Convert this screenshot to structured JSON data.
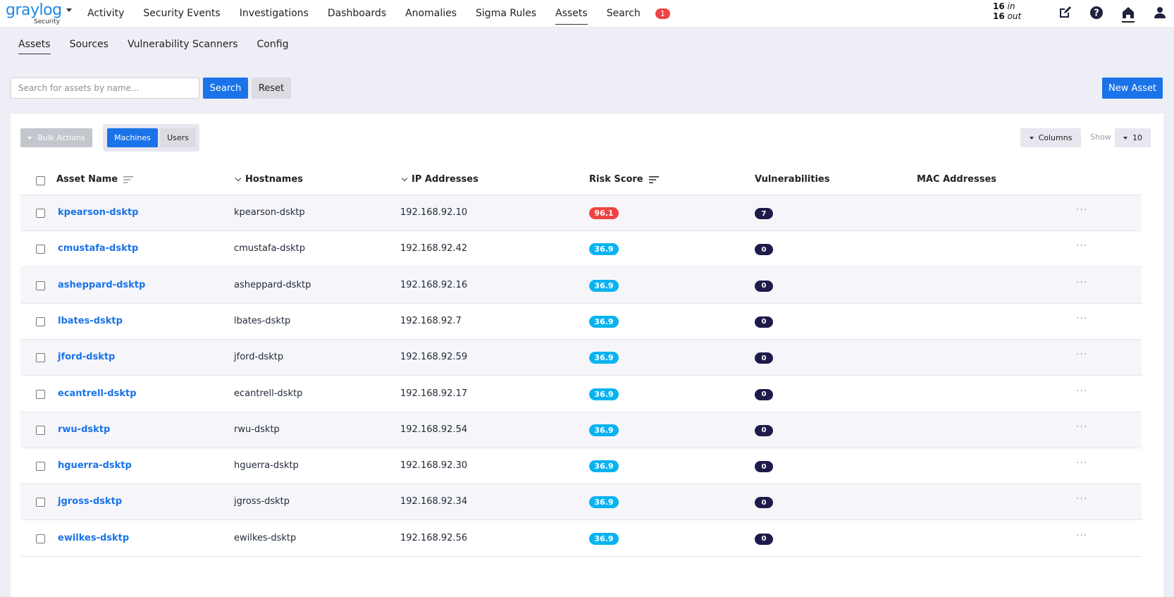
{
  "brand": {
    "logo_text": "graylog",
    "logo_sub": "Security"
  },
  "nav": {
    "items": [
      "Activity",
      "Security Events",
      "Investigations",
      "Dashboards",
      "Anomalies",
      "Sigma Rules",
      "Assets",
      "Search"
    ],
    "active": "Assets",
    "notification_count": "1"
  },
  "throughput": {
    "in_value": "16",
    "in_label": "in",
    "out_value": "16",
    "out_label": "out"
  },
  "icons": [
    "edit-icon",
    "help-icon",
    "home-icon",
    "user-icon"
  ],
  "subnav": {
    "items": [
      "Assets",
      "Sources",
      "Vulnerability Scanners",
      "Config"
    ],
    "active": "Assets"
  },
  "search": {
    "placeholder": "Search for assets by name...",
    "value": "",
    "search_label": "Search",
    "reset_label": "Reset",
    "new_label": "New Asset"
  },
  "toolbar": {
    "bulk_label": "Bulk Actions",
    "tab_machines": "Machines",
    "tab_users": "Users",
    "columns_label": "Columns",
    "show_label": "Show",
    "show_value": "10"
  },
  "table": {
    "headers": {
      "name": "Asset Name",
      "hostnames": "Hostnames",
      "ips": "IP Addresses",
      "risk": "Risk Score",
      "vulns": "Vulnerabilities",
      "mac": "MAC Addresses"
    },
    "rows": [
      {
        "name": "kpearson-dsktp",
        "hostname": "kpearson-dsktp",
        "ip": "192.168.92.10",
        "risk": "96.1",
        "risk_level": "high",
        "vulns": "7",
        "mac": ""
      },
      {
        "name": "cmustafa-dsktp",
        "hostname": "cmustafa-dsktp",
        "ip": "192.168.92.42",
        "risk": "36.9",
        "risk_level": "low",
        "vulns": "0",
        "mac": ""
      },
      {
        "name": "asheppard-dsktp",
        "hostname": "asheppard-dsktp",
        "ip": "192.168.92.16",
        "risk": "36.9",
        "risk_level": "low",
        "vulns": "0",
        "mac": ""
      },
      {
        "name": "lbates-dsktp",
        "hostname": "lbates-dsktp",
        "ip": "192.168.92.7",
        "risk": "36.9",
        "risk_level": "low",
        "vulns": "0",
        "mac": ""
      },
      {
        "name": "jford-dsktp",
        "hostname": "jford-dsktp",
        "ip": "192.168.92.59",
        "risk": "36.9",
        "risk_level": "low",
        "vulns": "0",
        "mac": ""
      },
      {
        "name": "ecantrell-dsktp",
        "hostname": "ecantrell-dsktp",
        "ip": "192.168.92.17",
        "risk": "36.9",
        "risk_level": "low",
        "vulns": "0",
        "mac": ""
      },
      {
        "name": "rwu-dsktp",
        "hostname": "rwu-dsktp",
        "ip": "192.168.92.54",
        "risk": "36.9",
        "risk_level": "low",
        "vulns": "0",
        "mac": ""
      },
      {
        "name": "hguerra-dsktp",
        "hostname": "hguerra-dsktp",
        "ip": "192.168.92.30",
        "risk": "36.9",
        "risk_level": "low",
        "vulns": "0",
        "mac": ""
      },
      {
        "name": "jgross-dsktp",
        "hostname": "jgross-dsktp",
        "ip": "192.168.92.34",
        "risk": "36.9",
        "risk_level": "low",
        "vulns": "0",
        "mac": ""
      },
      {
        "name": "ewilkes-dsktp",
        "hostname": "ewilkes-dsktp",
        "ip": "192.168.92.56",
        "risk": "36.9",
        "risk_level": "low",
        "vulns": "0",
        "mac": ""
      }
    ]
  },
  "colors": {
    "primary": "#1a73e8",
    "risk_high": "#ef4444",
    "risk_low": "#0ab3f0",
    "vuln_badge": "#1e1b4b",
    "page_bg": "#eeeef7"
  }
}
